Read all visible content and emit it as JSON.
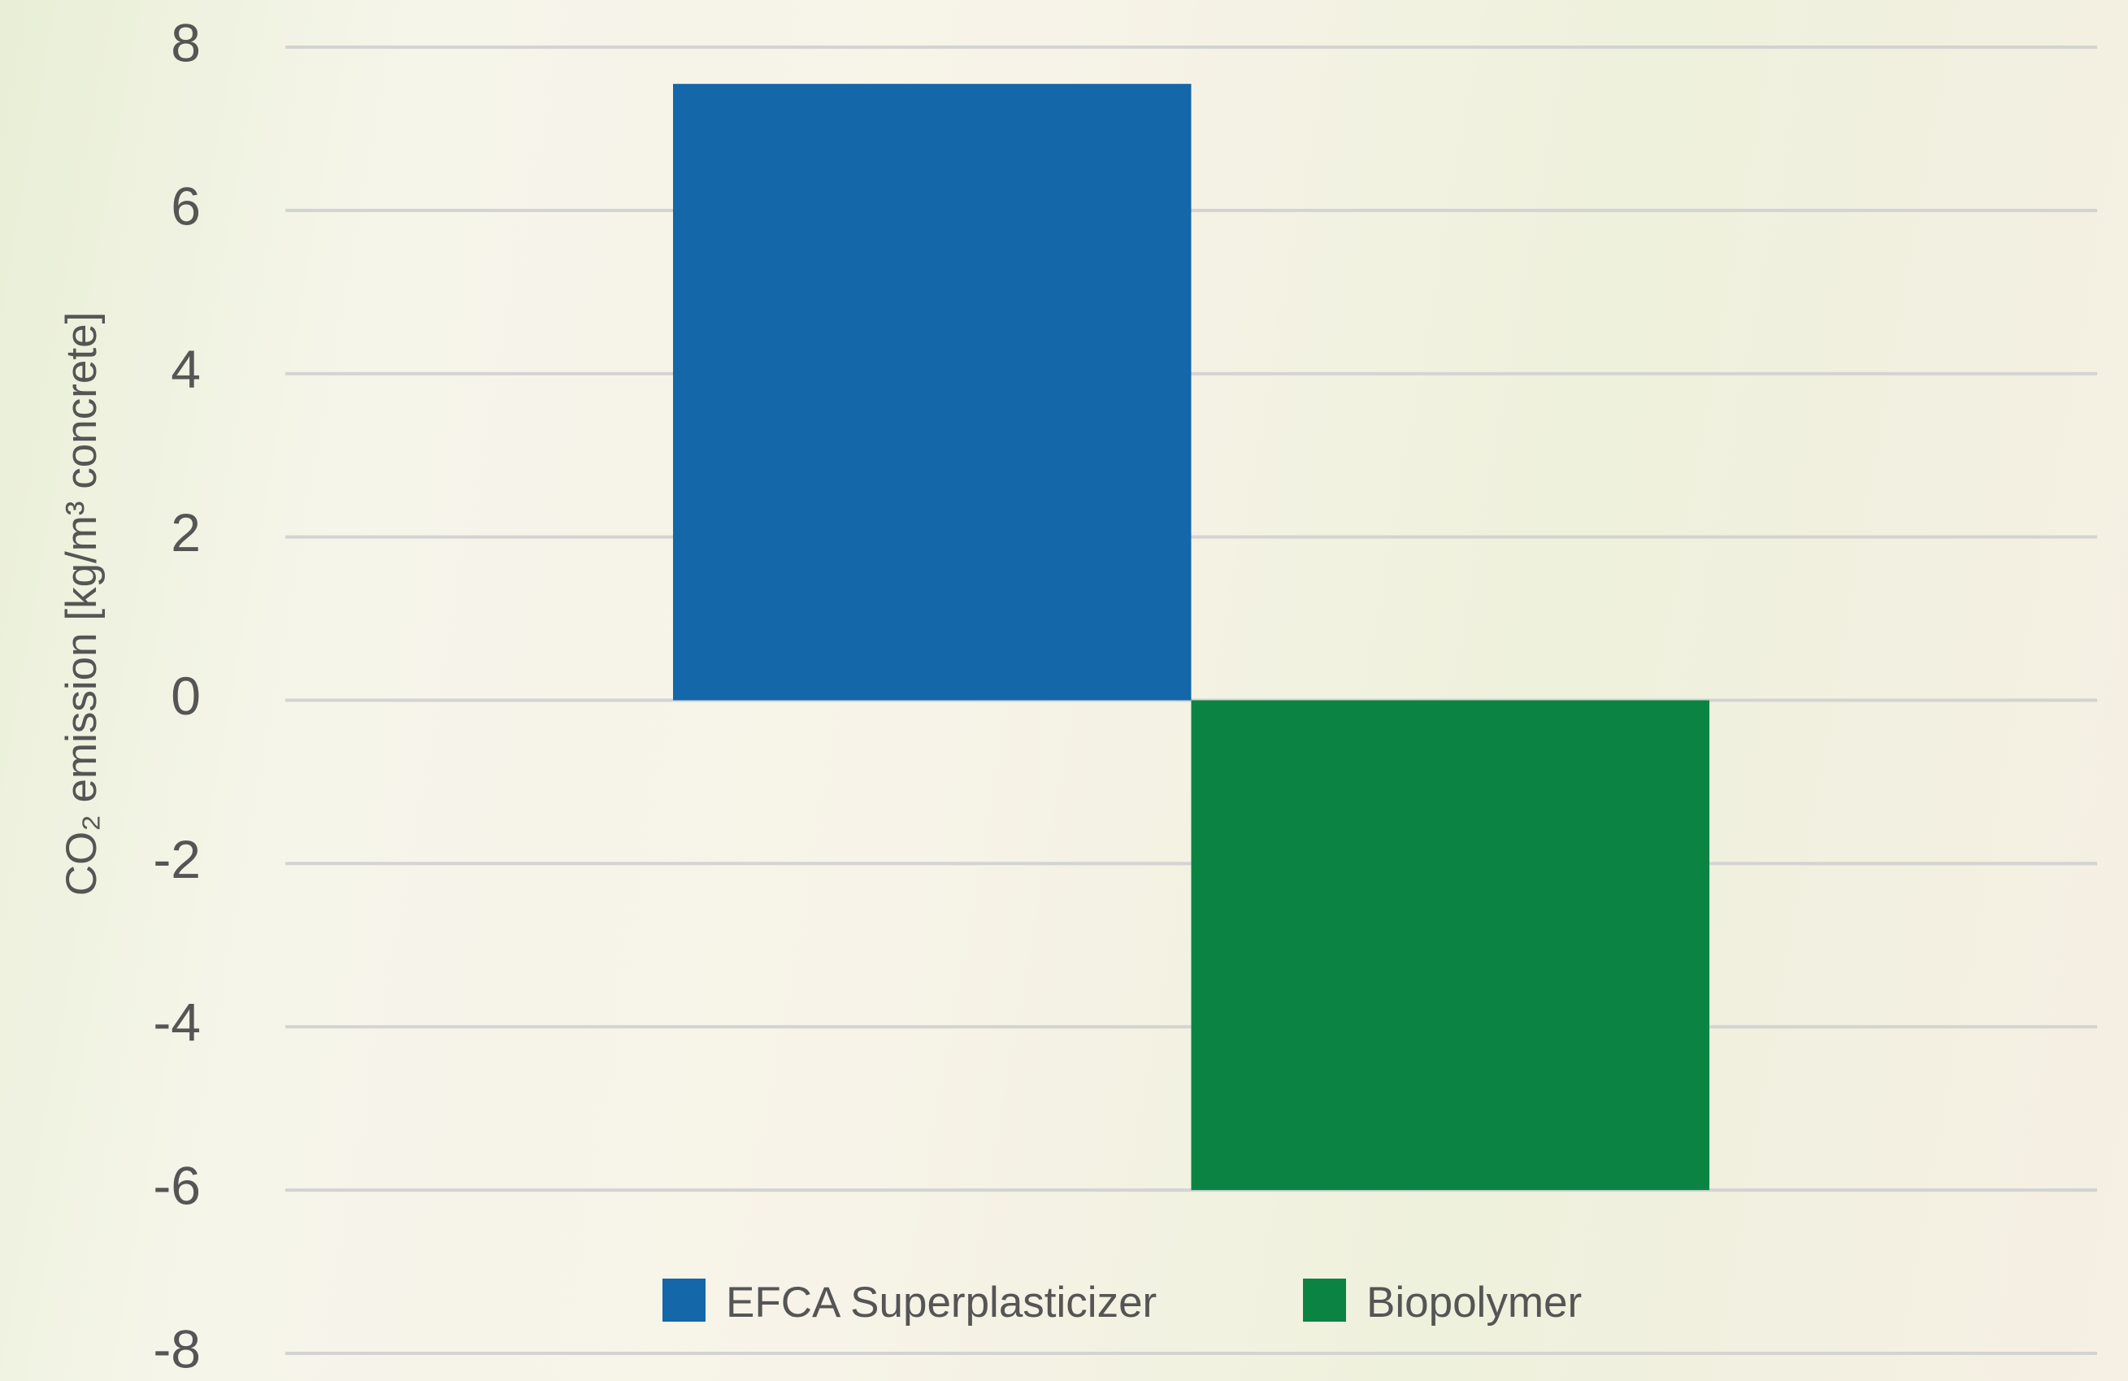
{
  "chart_data": {
    "type": "bar",
    "y_label": "CO₂ emission [kg/m³ concrete]",
    "categories": [
      null
    ],
    "series": [
      {
        "name": "EFCA Superplasticizer",
        "color": "#1467a8",
        "values": [
          7.55
        ]
      },
      {
        "name": "Biopolymer",
        "color": "#0b8443",
        "values": [
          -6
        ]
      }
    ],
    "ylim": [
      -8,
      8
    ],
    "yticks": [
      -8,
      -6,
      -4,
      -2,
      0,
      2,
      4,
      6,
      8
    ],
    "grid": true,
    "legend": "bottom"
  }
}
